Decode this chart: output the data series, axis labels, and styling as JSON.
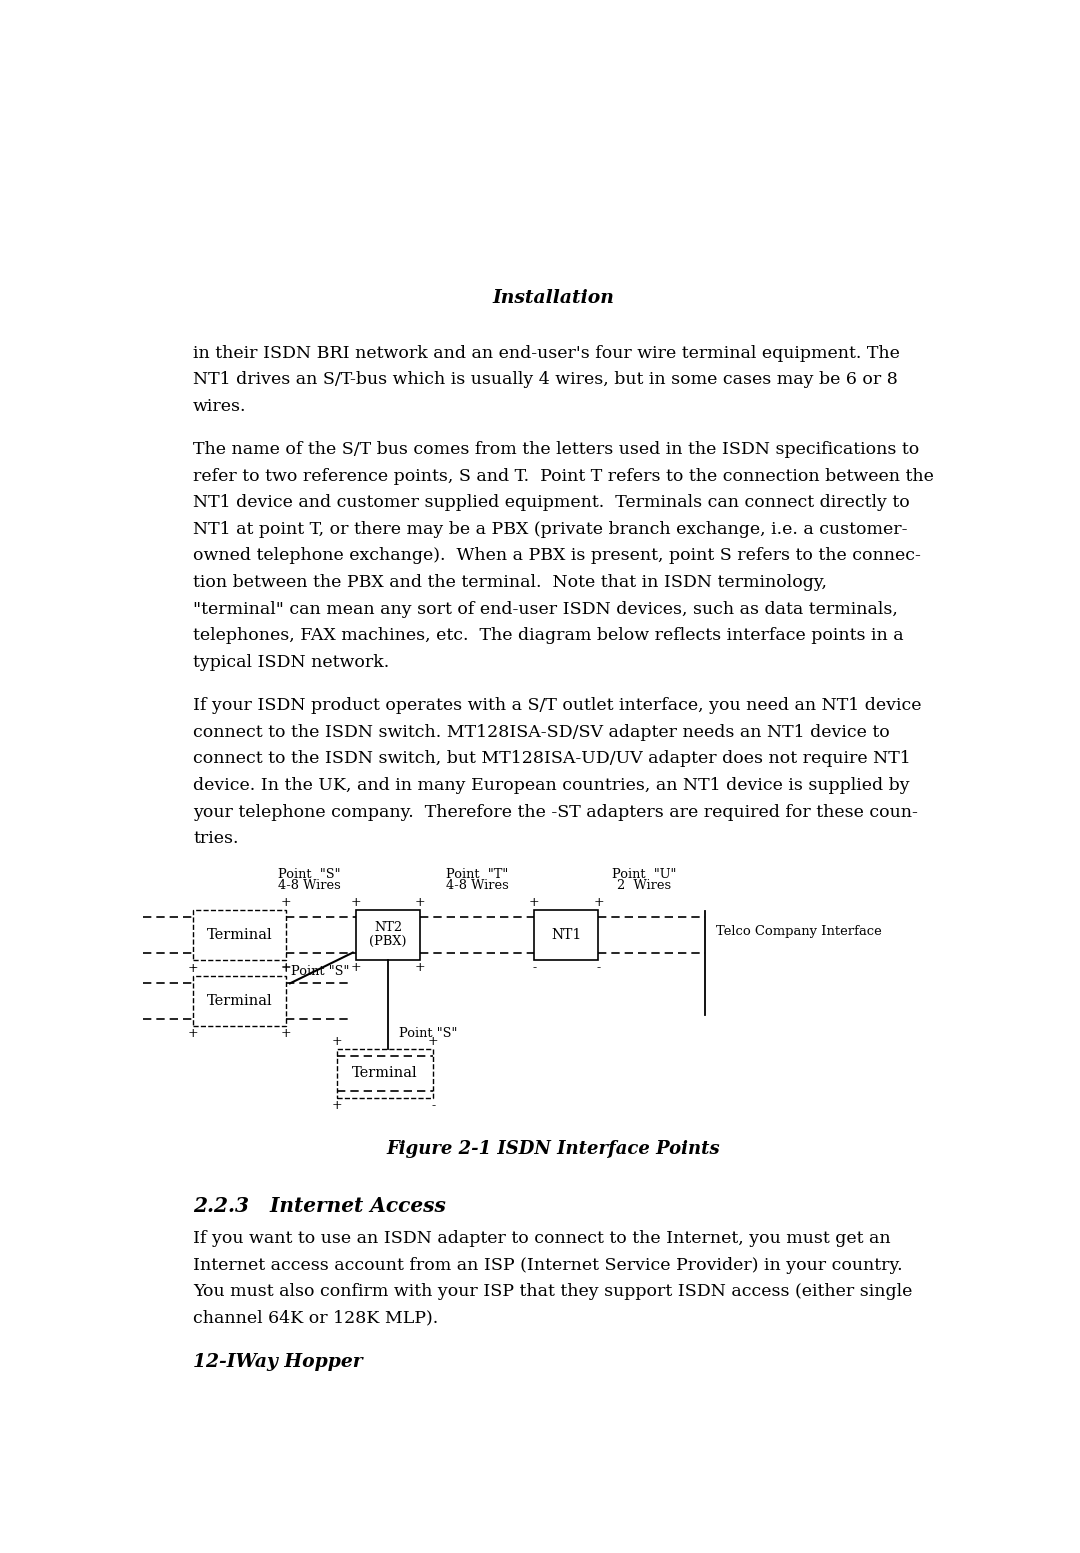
{
  "title": "Installation",
  "para1_lines": [
    "in their ISDN BRI network and an end-user's four wire terminal equipment. The",
    "NT1 drives an S/T-bus which is usually 4 wires, but in some cases may be 6 or 8",
    "wires."
  ],
  "para2_lines": [
    "The name of the S/T bus comes from the letters used in the ISDN specifications to",
    "refer to two reference points, S and T.  Point T refers to the connection between the",
    "NT1 device and customer supplied equipment.  Terminals can connect directly to",
    "NT1 at point T, or there may be a PBX (private branch exchange, i.e. a customer-",
    "owned telephone exchange).  When a PBX is present, point S refers to the connec-",
    "tion between the PBX and the terminal.  Note that in ISDN terminology,",
    "\"terminal\" can mean any sort of end-user ISDN devices, such as data terminals,",
    "telephones, FAX machines, etc.  The diagram below reflects interface points in a",
    "typical ISDN network."
  ],
  "para3_lines": [
    "If your ISDN product operates with a S/T outlet interface, you need an NT1 device",
    "connect to the ISDN switch. MT128ISA-SD/SV adapter needs an NT1 device to",
    "connect to the ISDN switch, but MT128ISA-UD/UV adapter does not require NT1",
    "device. In the UK, and in many European countries, an NT1 device is supplied by",
    "your telephone company.  Therefore the -ST adapters are required for these coun-",
    "tries."
  ],
  "figure_caption": "Figure 2-1 ISDN Interface Points",
  "section_title": "2.2.3   Internet Access",
  "section_para_lines": [
    "If you want to use an ISDN adapter to connect to the Internet, you must get an",
    "Internet access account from an ISP (Internet Service Provider) in your country.",
    "You must also confirm with your ISP that they support ISDN access (either single",
    "channel 64K or 128K MLP)."
  ],
  "subsection_title": "12-IWay Hopper",
  "bg_color": "#ffffff",
  "text_color": "#000000"
}
